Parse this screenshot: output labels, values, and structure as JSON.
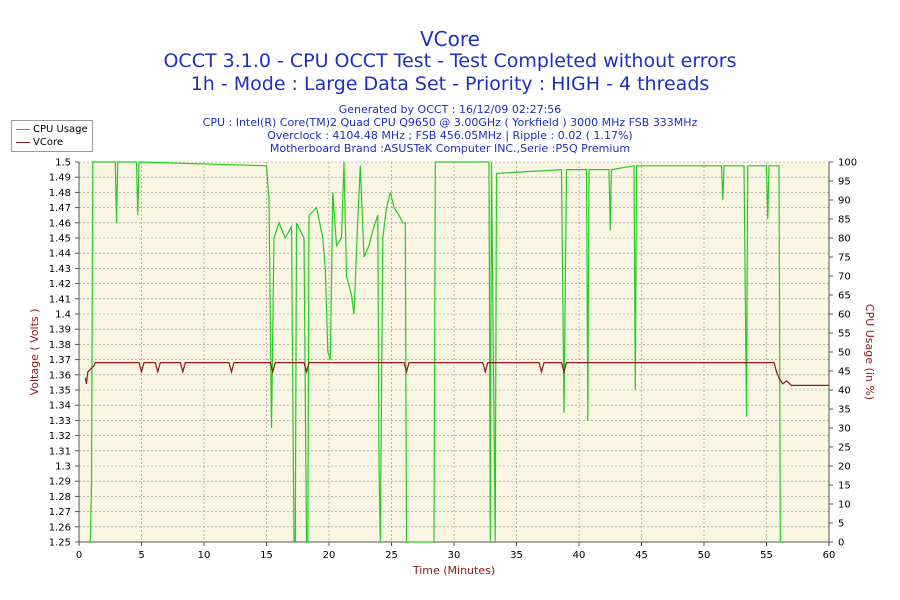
{
  "header": {
    "title": "VCore",
    "subtitle_1": "OCCT 3.1.0 - CPU OCCT Test - Test Completed without errors",
    "subtitle_2": "1h - Mode : Large Data Set - Priority : HIGH - 4 threads",
    "info": [
      "Generated by OCCT : 16/12/09 02:27:56",
      "CPU : Intel(R) Core(TM)2 Quad CPU Q9650 @ 3.00GHz ( Yorkfield ) 3000 MHz FSB 333MHz",
      "Overclock : 4104.48 MHz ; FSB 456.05MHz | Ripple : 0.02 ( 1.17%)",
      "Motherboard Brand :ASUSTeK Computer INC.,Serie :P5Q Premium"
    ]
  },
  "legend": [
    {
      "label": "CPU Usage",
      "color": "#22cc22"
    },
    {
      "label": "VCore",
      "color": "#8b1a1a"
    }
  ],
  "chart_data": {
    "type": "line",
    "xlabel": "Time (Minutes)",
    "ylabel_left": "Voltage ( Volts )",
    "ylabel_right": "CPU Usage (in %)",
    "xlim": [
      0,
      60
    ],
    "ylim_left": [
      1.25,
      1.5
    ],
    "ylim_right": [
      0,
      100
    ],
    "x_ticks": [
      0,
      5,
      10,
      15,
      20,
      25,
      30,
      35,
      40,
      45,
      50,
      55,
      60
    ],
    "y_left_ticks": [
      "1.25",
      "1.26",
      "1.27",
      "1.28",
      "1.29",
      "1.3",
      "1.31",
      "1.32",
      "1.33",
      "1.34",
      "1.35",
      "1.36",
      "1.37",
      "1.38",
      "1.39",
      "1.4",
      "1.41",
      "1.42",
      "1.43",
      "1.44",
      "1.45",
      "1.46",
      "1.47",
      "1.48",
      "1.49",
      "1.5"
    ],
    "y_right_ticks": [
      0,
      5,
      10,
      15,
      20,
      25,
      30,
      35,
      40,
      45,
      50,
      55,
      60,
      65,
      70,
      75,
      80,
      85,
      90,
      95,
      100
    ],
    "grid": true,
    "series": [
      {
        "name": "CPU Usage",
        "axis": "right",
        "color": "#22cc22",
        "points": [
          [
            0.9,
            0
          ],
          [
            1.0,
            15
          ],
          [
            1.1,
            100
          ],
          [
            2.9,
            100
          ],
          [
            3.0,
            84
          ],
          [
            3.1,
            100
          ],
          [
            4.6,
            100
          ],
          [
            4.7,
            86
          ],
          [
            4.8,
            100
          ],
          [
            15.0,
            99
          ],
          [
            15.2,
            90
          ],
          [
            15.4,
            30
          ],
          [
            15.6,
            80
          ],
          [
            16.0,
            84
          ],
          [
            16.5,
            80
          ],
          [
            17.0,
            83
          ],
          [
            17.2,
            0
          ],
          [
            17.3,
            0
          ],
          [
            17.4,
            84
          ],
          [
            18.0,
            80
          ],
          [
            18.2,
            0
          ],
          [
            18.3,
            0
          ],
          [
            18.4,
            86
          ],
          [
            19.0,
            88
          ],
          [
            19.5,
            80
          ],
          [
            19.7,
            72
          ],
          [
            19.9,
            50
          ],
          [
            20.1,
            48
          ],
          [
            20.3,
            92
          ],
          [
            20.6,
            78
          ],
          [
            21.0,
            80
          ],
          [
            21.2,
            100
          ],
          [
            21.4,
            70
          ],
          [
            21.8,
            65
          ],
          [
            22.0,
            60
          ],
          [
            22.3,
            85
          ],
          [
            22.5,
            99
          ],
          [
            22.8,
            75
          ],
          [
            23.2,
            78
          ],
          [
            23.5,
            82
          ],
          [
            23.9,
            86
          ],
          [
            24.0,
            20
          ],
          [
            24.1,
            0
          ],
          [
            24.3,
            80
          ],
          [
            24.6,
            88
          ],
          [
            24.9,
            92
          ],
          [
            25.2,
            88
          ],
          [
            25.6,
            86
          ],
          [
            25.9,
            84
          ],
          [
            26.1,
            84
          ],
          [
            26.2,
            0
          ],
          [
            26.3,
            0
          ],
          [
            28.4,
            0
          ],
          [
            28.5,
            100
          ],
          [
            32.8,
            100
          ],
          [
            32.9,
            0
          ],
          [
            33.0,
            100
          ],
          [
            33.3,
            0
          ],
          [
            33.4,
            97
          ],
          [
            38.6,
            98
          ],
          [
            38.8,
            34
          ],
          [
            39.0,
            98
          ],
          [
            40.6,
            98
          ],
          [
            40.7,
            32
          ],
          [
            40.8,
            98
          ],
          [
            42.4,
            98
          ],
          [
            42.5,
            82
          ],
          [
            42.6,
            98
          ],
          [
            44.4,
            99
          ],
          [
            44.5,
            40
          ],
          [
            44.6,
            99
          ],
          [
            51.4,
            99
          ],
          [
            51.5,
            90
          ],
          [
            51.6,
            99
          ],
          [
            53.2,
            99
          ],
          [
            53.3,
            66
          ],
          [
            53.4,
            33
          ],
          [
            53.5,
            99
          ],
          [
            55.0,
            99
          ],
          [
            55.1,
            85
          ],
          [
            55.2,
            99
          ],
          [
            56.0,
            99
          ],
          [
            56.1,
            0
          ],
          [
            56.3,
            0
          ]
        ]
      },
      {
        "name": "VCore",
        "axis": "left",
        "color": "#8b1a1a",
        "points": [
          [
            0.5,
            1.358
          ],
          [
            0.6,
            1.354
          ],
          [
            0.7,
            1.362
          ],
          [
            1.2,
            1.366
          ],
          [
            1.3,
            1.368
          ],
          [
            4.8,
            1.368
          ],
          [
            5.0,
            1.362
          ],
          [
            5.2,
            1.368
          ],
          [
            6.1,
            1.368
          ],
          [
            6.3,
            1.362
          ],
          [
            6.5,
            1.368
          ],
          [
            8.1,
            1.368
          ],
          [
            8.3,
            1.362
          ],
          [
            8.5,
            1.368
          ],
          [
            12.0,
            1.368
          ],
          [
            12.2,
            1.362
          ],
          [
            12.4,
            1.368
          ],
          [
            15.3,
            1.368
          ],
          [
            15.5,
            1.362
          ],
          [
            15.7,
            1.368
          ],
          [
            18.0,
            1.368
          ],
          [
            18.2,
            1.362
          ],
          [
            18.4,
            1.368
          ],
          [
            26.0,
            1.368
          ],
          [
            26.2,
            1.362
          ],
          [
            26.4,
            1.368
          ],
          [
            32.3,
            1.368
          ],
          [
            32.5,
            1.362
          ],
          [
            32.7,
            1.368
          ],
          [
            36.8,
            1.368
          ],
          [
            37.0,
            1.362
          ],
          [
            37.2,
            1.368
          ],
          [
            38.6,
            1.368
          ],
          [
            38.8,
            1.362
          ],
          [
            39.0,
            1.368
          ],
          [
            55.6,
            1.368
          ],
          [
            55.8,
            1.362
          ],
          [
            56.0,
            1.358
          ],
          [
            56.3,
            1.354
          ],
          [
            56.6,
            1.356
          ],
          [
            57.0,
            1.353
          ],
          [
            60.0,
            1.353
          ]
        ]
      }
    ]
  }
}
